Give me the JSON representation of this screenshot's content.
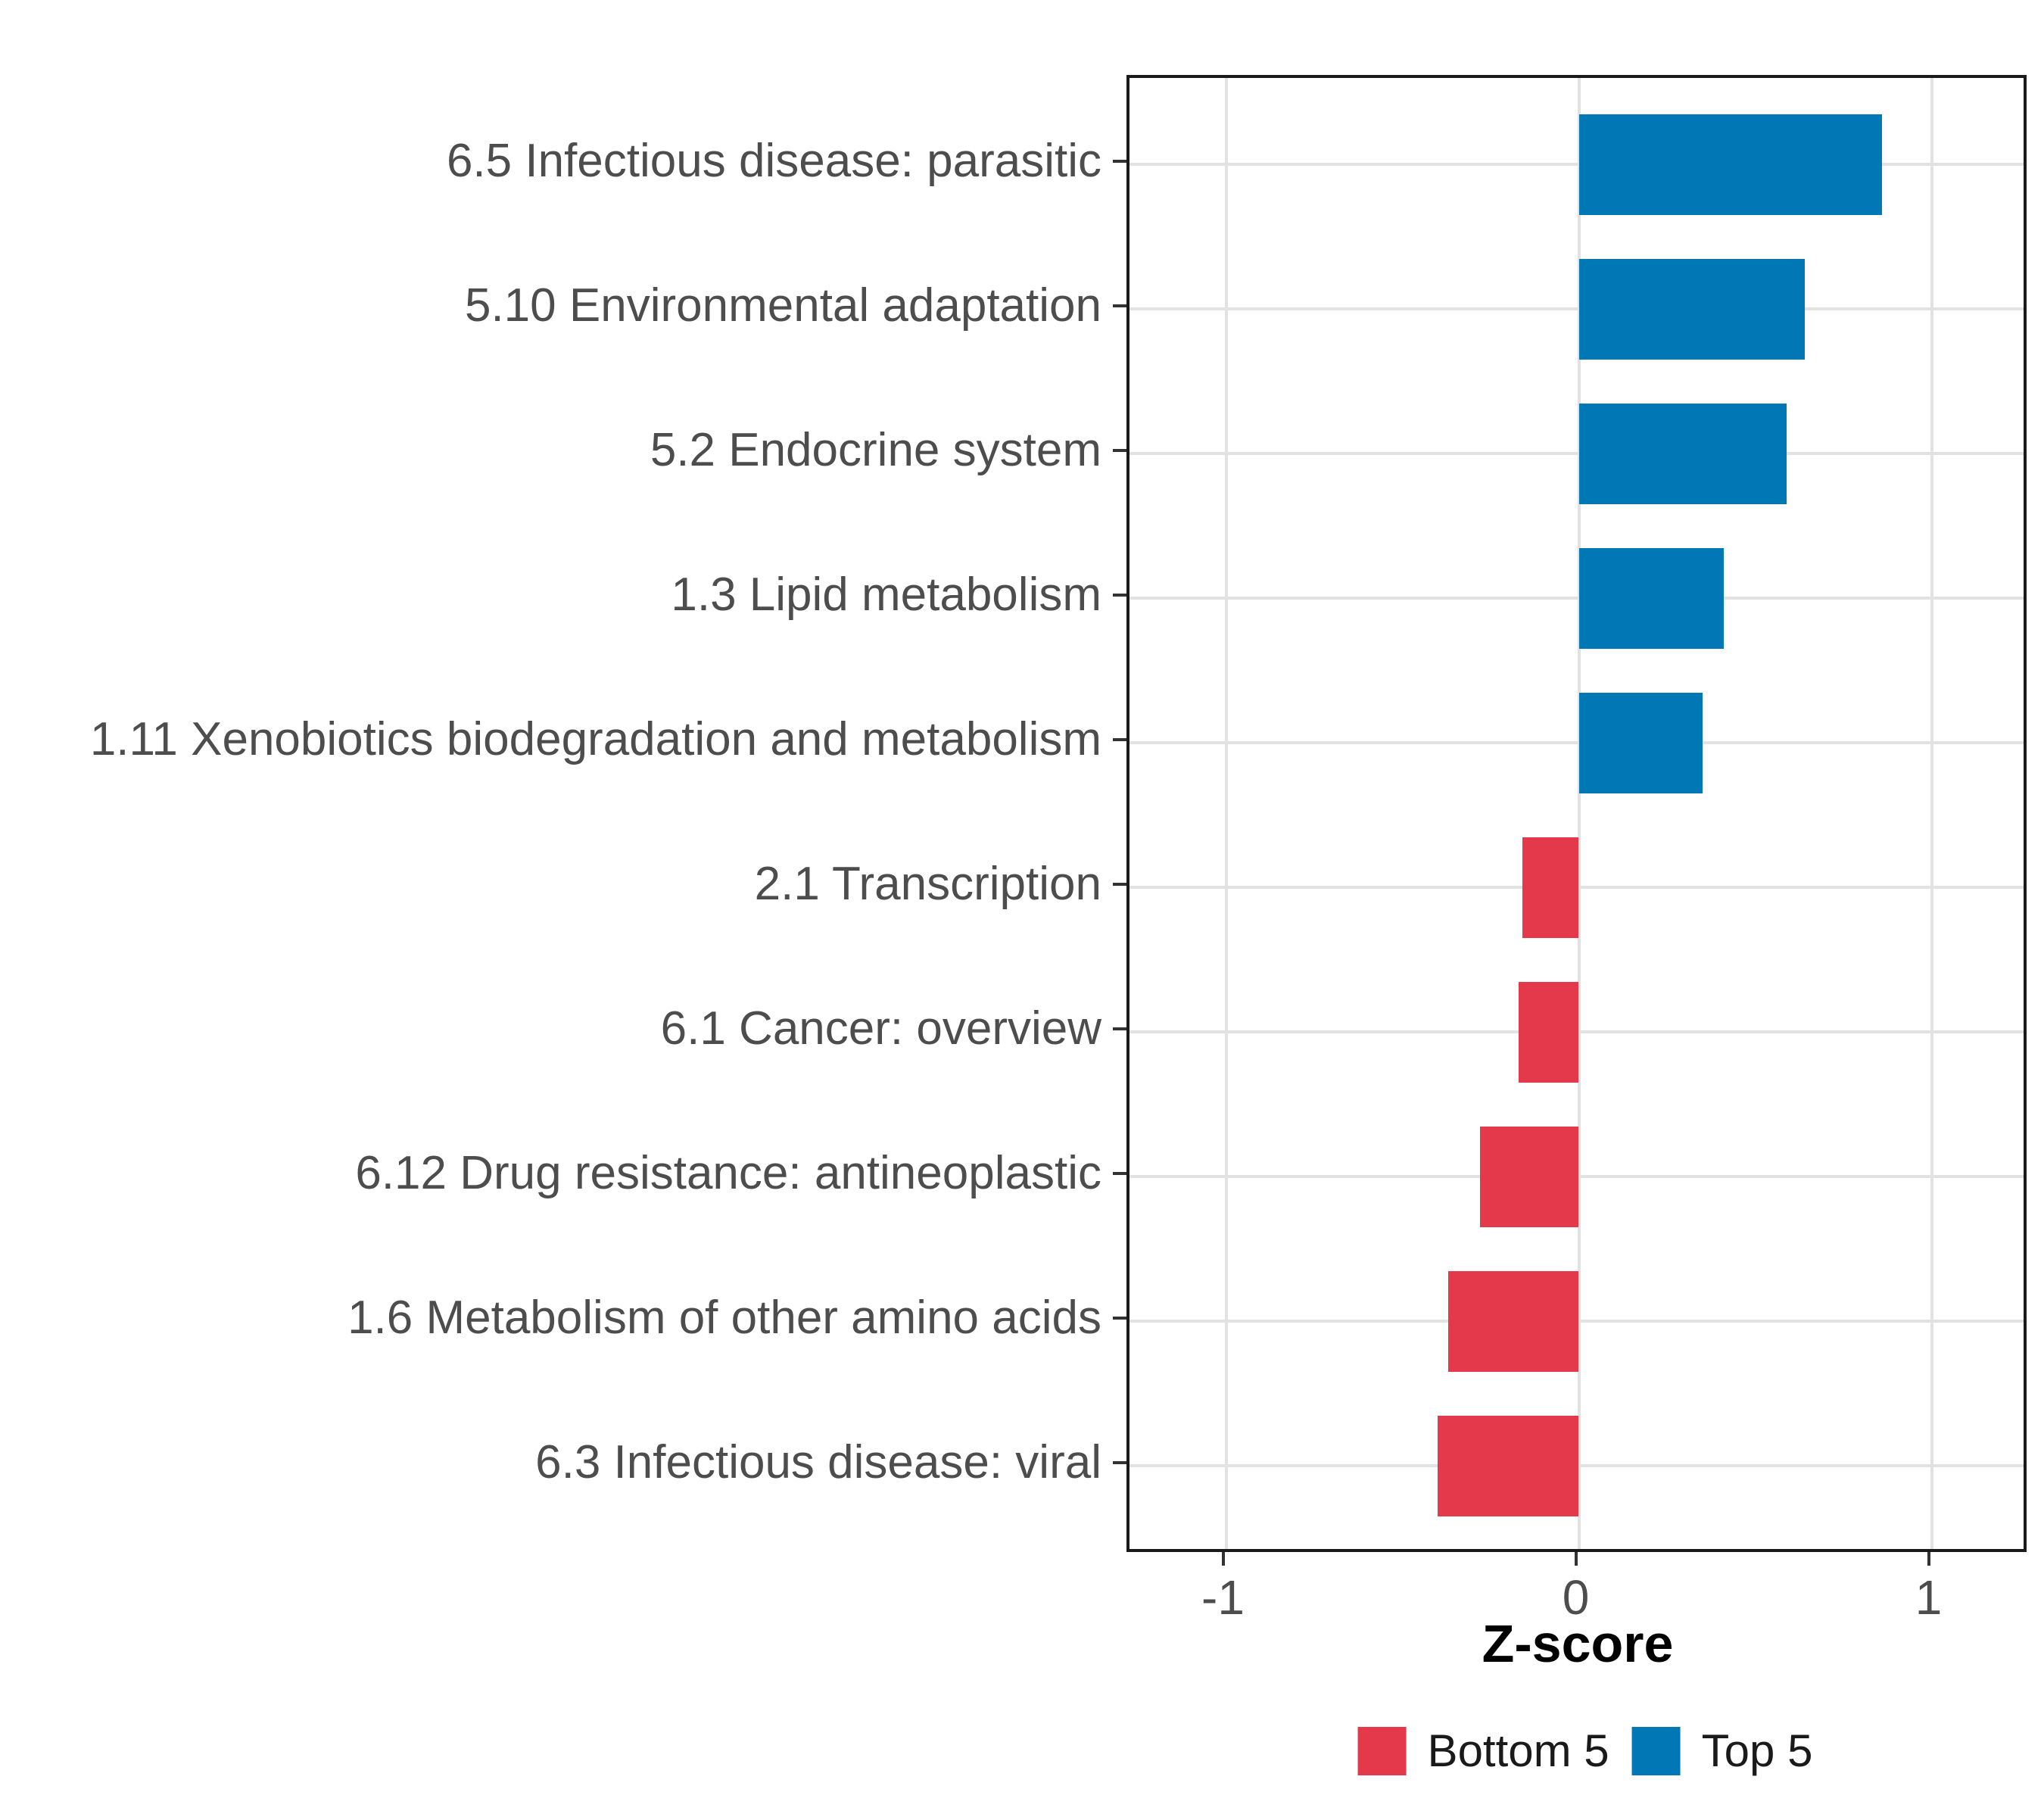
{
  "chart_data": {
    "type": "bar",
    "orientation": "horizontal",
    "title": "",
    "xlabel": "Z-score",
    "ylabel": "",
    "xlim": [
      -1.28,
      1.28
    ],
    "x_ticks": [
      "-1",
      "0",
      "1"
    ],
    "x_tick_values": [
      -1,
      0,
      1
    ],
    "grid": "major-only",
    "legend_position": "bottom",
    "categories": [
      "6.5 Infectious disease: parasitic",
      "5.10 Environmental adaptation",
      "5.2 Endocrine system",
      "1.3 Lipid metabolism",
      "1.11 Xenobiotics biodegradation and metabolism",
      "2.1 Transcription",
      "6.1 Cancer: overview",
      "6.12 Drug resistance: antineoplastic",
      "1.6 Metabolism of other amino acids",
      "6.3 Infectious disease: viral"
    ],
    "series": [
      {
        "name": "Z-score",
        "values": [
          0.86,
          0.64,
          0.59,
          0.41,
          0.35,
          -0.16,
          -0.17,
          -0.28,
          -0.37,
          -0.4
        ],
        "groups": [
          "Top 5",
          "Top 5",
          "Top 5",
          "Top 5",
          "Top 5",
          "Bottom 5",
          "Bottom 5",
          "Bottom 5",
          "Bottom 5",
          "Bottom 5"
        ]
      }
    ],
    "legend": [
      {
        "label": "Bottom 5",
        "color": "#E4394A"
      },
      {
        "label": "Top 5",
        "color": "#0277B5"
      }
    ],
    "colors": {
      "Bottom 5": "#E4394A",
      "Top 5": "#0277B5"
    }
  },
  "style": {
    "background": "#FFFFFF",
    "panel_background": "#FFFFFF",
    "panel_border": "#1A1A1A",
    "gridline": "#E2E2E2",
    "axis_text": "#4D4D4D",
    "tick_mark": "#333333",
    "axis_title_text": "#000000",
    "legend_text": "#1A1A1A"
  }
}
